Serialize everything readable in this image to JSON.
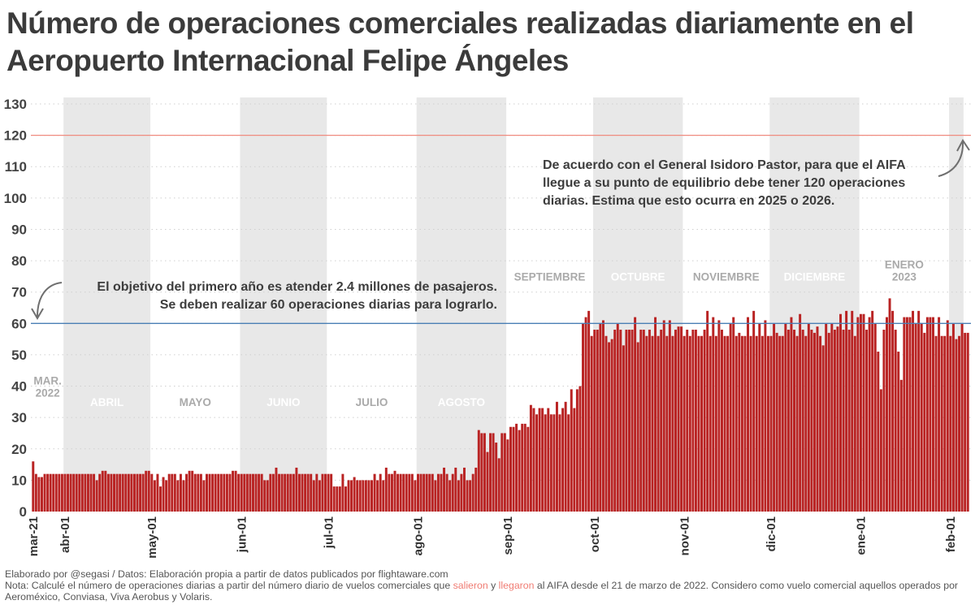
{
  "title": "Número de operaciones comerciales realizadas diariamente en el Aeropuerto Internacional Felipe Ángeles",
  "footer": {
    "credit": "Elaborado por @segasi / Datos: Elaboración propia a partir de datos publicados por flightaware.com",
    "note_prefix": "Nota: Calculé el número de operaciones diarias a partir del número diario de vuelos comerciales que ",
    "note_salieron": "salieron",
    "note_y": " y ",
    "note_llegaron": "llegaron",
    "note_suffix": " al AIFA desde el 21 de marzo de 2022. Considero como vuelo comercial aquellos operados por Aeroméxico, Conviasa, Viva Aerobus y Volaris."
  },
  "colors": {
    "bar": "#b92323",
    "target_60": "#4a7fb5",
    "target_120": "#f08c80",
    "shade": "#e8e8e8",
    "highlight": "#f07b72"
  },
  "chart_data": {
    "type": "bar",
    "title": "Número de operaciones comerciales realizadas diariamente en el Aeropuerto Internacional Felipe Ángeles",
    "xlabel": "",
    "ylabel": "",
    "ylim": [
      0,
      130
    ],
    "yticks": [
      0,
      10,
      20,
      30,
      40,
      50,
      60,
      70,
      80,
      90,
      100,
      110,
      120,
      130
    ],
    "grid": true,
    "start_date": "2022-03-21",
    "end_date": "2023-02-05",
    "xtick_labels": [
      {
        "label": "mar-21",
        "day": 0
      },
      {
        "label": "abr-01",
        "day": 11
      },
      {
        "label": "may-01",
        "day": 41
      },
      {
        "label": "jun-01",
        "day": 72
      },
      {
        "label": "jul-01",
        "day": 102
      },
      {
        "label": "ago-01",
        "day": 133
      },
      {
        "label": "sep-01",
        "day": 164
      },
      {
        "label": "oct-01",
        "day": 194
      },
      {
        "label": "nov-01",
        "day": 225
      },
      {
        "label": "dic-01",
        "day": 255
      },
      {
        "label": "ene-01",
        "day": 286
      },
      {
        "label": "feb-01",
        "day": 317
      }
    ],
    "months": [
      {
        "label": "MAR.",
        "label2": "2022",
        "start": 0,
        "end": 11,
        "shaded": false,
        "y": 40
      },
      {
        "label": "ABRIL",
        "label2": "",
        "start": 11,
        "end": 41,
        "shaded": true,
        "y": 35
      },
      {
        "label": "MAYO",
        "label2": "",
        "start": 41,
        "end": 72,
        "shaded": false,
        "y": 35
      },
      {
        "label": "JUNIO",
        "label2": "",
        "start": 72,
        "end": 102,
        "shaded": true,
        "y": 35
      },
      {
        "label": "JULIO",
        "label2": "",
        "start": 102,
        "end": 133,
        "shaded": false,
        "y": 35
      },
      {
        "label": "AGOSTO",
        "label2": "",
        "start": 133,
        "end": 164,
        "shaded": true,
        "y": 35
      },
      {
        "label": "SEPTIEMBRE",
        "label2": "",
        "start": 164,
        "end": 194,
        "shaded": false,
        "y": 75
      },
      {
        "label": "OCTUBRE",
        "label2": "",
        "start": 194,
        "end": 225,
        "shaded": true,
        "y": 75
      },
      {
        "label": "NOVIEMBRE",
        "label2": "",
        "start": 225,
        "end": 255,
        "shaded": false,
        "y": 75
      },
      {
        "label": "DICIEMBRE",
        "label2": "",
        "start": 255,
        "end": 286,
        "shaded": true,
        "y": 75
      },
      {
        "label": "ENERO",
        "label2": "2023",
        "start": 286,
        "end": 317,
        "shaded": false,
        "y": 77
      },
      {
        "label": "",
        "label2": "",
        "start": 317,
        "end": 322,
        "shaded": true,
        "y": 0
      }
    ],
    "reference_lines": [
      {
        "value": 60,
        "color": "#4a7fb5"
      },
      {
        "value": 120,
        "color": "#f08c80"
      }
    ],
    "annotations": [
      {
        "lines": [
          "El objetivo del primero año es atender 2.4 millones de pasajeros.",
          "Se deben realizar 60 operaciones diarias para lograrlo."
        ],
        "align": "right"
      },
      {
        "lines": [
          "De acuerdo con el General Isidoro Pastor, para que el AIFA",
          "llegue a su punto de equilibrio debe tener 120 operaciones",
          "diarias. Estima que esto ocurra en 2025 o 2026."
        ],
        "align": "left"
      }
    ],
    "values": [
      16,
      12,
      11,
      11,
      12,
      12,
      12,
      12,
      12,
      12,
      12,
      12,
      12,
      12,
      12,
      12,
      12,
      12,
      12,
      12,
      12,
      12,
      10,
      12,
      13,
      13,
      12,
      12,
      12,
      12,
      12,
      12,
      12,
      12,
      12,
      12,
      12,
      12,
      12,
      13,
      13,
      12,
      10,
      12,
      8,
      11,
      10,
      12,
      12,
      12,
      10,
      12,
      10,
      12,
      13,
      13,
      12,
      12,
      12,
      10,
      12,
      12,
      12,
      12,
      12,
      12,
      12,
      12,
      12,
      13,
      13,
      12,
      12,
      12,
      12,
      12,
      12,
      12,
      12,
      12,
      10,
      10,
      12,
      12,
      14,
      12,
      12,
      12,
      12,
      12,
      12,
      14,
      12,
      12,
      12,
      12,
      12,
      10,
      12,
      10,
      12,
      12,
      12,
      12,
      8,
      8,
      8,
      12,
      8,
      10,
      10,
      11,
      10,
      10,
      10,
      10,
      10,
      10,
      12,
      10,
      12,
      10,
      14,
      12,
      12,
      13,
      12,
      12,
      12,
      12,
      12,
      12,
      10,
      12,
      12,
      12,
      12,
      12,
      12,
      10,
      12,
      12,
      14,
      12,
      10,
      12,
      14,
      10,
      12,
      14,
      10,
      10,
      12,
      14,
      26,
      25,
      25,
      19,
      25,
      25,
      22,
      17,
      25,
      25,
      23,
      27,
      27,
      28,
      26,
      28,
      28,
      27,
      34,
      33,
      31,
      33,
      33,
      31,
      33,
      31,
      31,
      35,
      31,
      33,
      35,
      31,
      39,
      33,
      39,
      40,
      60,
      62,
      64,
      56,
      58,
      58,
      60,
      61,
      56,
      54,
      55,
      58,
      60,
      58,
      53,
      58,
      58,
      58,
      62,
      54,
      58,
      58,
      56,
      58,
      56,
      62,
      56,
      58,
      61,
      56,
      61,
      56,
      58,
      59,
      59,
      56,
      58,
      56,
      58,
      58,
      56,
      56,
      58,
      64,
      56,
      62,
      56,
      61,
      58,
      56,
      56,
      60,
      62,
      56,
      57,
      56,
      56,
      62,
      56,
      64,
      56,
      60,
      56,
      61,
      56,
      56,
      60,
      57,
      56,
      56,
      60,
      58,
      62,
      58,
      56,
      63,
      58,
      56,
      60,
      58,
      57,
      59,
      56,
      53,
      60,
      57,
      60,
      58,
      59,
      63,
      58,
      64,
      58,
      64,
      56,
      62,
      63,
      63,
      58,
      62,
      64,
      60,
      51,
      39,
      58,
      62,
      68,
      64,
      58,
      51,
      42,
      62,
      62,
      62,
      64,
      60,
      64,
      60,
      57,
      62,
      62,
      62,
      56,
      62,
      56,
      56,
      61,
      56,
      60,
      55,
      56,
      60,
      57,
      57
    ]
  }
}
